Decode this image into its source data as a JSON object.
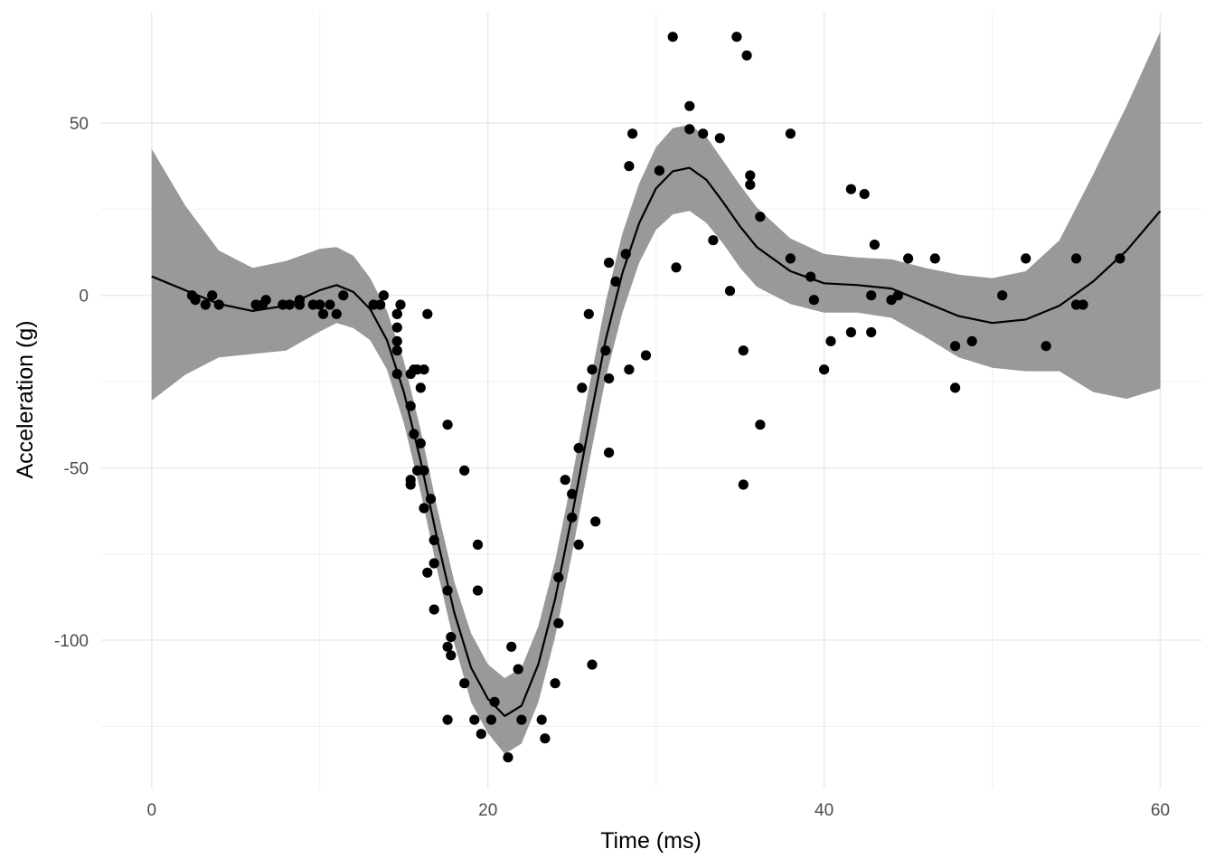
{
  "chart_data": {
    "type": "scatter",
    "title": "",
    "xlabel": "Time (ms)",
    "ylabel": "Acceleration (g)",
    "xlim": [
      -3.0,
      62.5
    ],
    "ylim": [
      -143,
      82
    ],
    "x_ticks": [
      0,
      20,
      40,
      60
    ],
    "x_minor_ticks": [
      10,
      30,
      50
    ],
    "y_ticks": [
      -100,
      -50,
      0,
      50
    ],
    "y_minor_ticks": [
      -125,
      -75,
      -25,
      25
    ],
    "grid": true,
    "legend": "none",
    "colors": {
      "points": "#000000",
      "smooth_line": "#000000",
      "confidence_band": "#999999",
      "grid": "#ebebeb"
    },
    "points": [
      {
        "x": 2.4,
        "y": 0.0
      },
      {
        "x": 2.6,
        "y": -1.3
      },
      {
        "x": 3.2,
        "y": -2.7
      },
      {
        "x": 3.6,
        "y": 0.0
      },
      {
        "x": 4.0,
        "y": -2.7
      },
      {
        "x": 6.2,
        "y": -2.7
      },
      {
        "x": 6.6,
        "y": -2.7
      },
      {
        "x": 6.8,
        "y": -1.3
      },
      {
        "x": 7.8,
        "y": -2.7
      },
      {
        "x": 8.2,
        "y": -2.7
      },
      {
        "x": 8.8,
        "y": -1.3
      },
      {
        "x": 8.8,
        "y": -2.7
      },
      {
        "x": 9.6,
        "y": -2.7
      },
      {
        "x": 10.0,
        "y": -2.7
      },
      {
        "x": 10.2,
        "y": -5.4
      },
      {
        "x": 10.6,
        "y": -2.7
      },
      {
        "x": 11.0,
        "y": -5.4
      },
      {
        "x": 11.4,
        "y": 0.0
      },
      {
        "x": 13.2,
        "y": -2.7
      },
      {
        "x": 13.6,
        "y": -2.7
      },
      {
        "x": 13.8,
        "y": 0.0
      },
      {
        "x": 14.6,
        "y": -13.3
      },
      {
        "x": 14.6,
        "y": -5.4
      },
      {
        "x": 14.6,
        "y": -5.4
      },
      {
        "x": 14.6,
        "y": -9.3
      },
      {
        "x": 14.6,
        "y": -16.0
      },
      {
        "x": 14.6,
        "y": -22.8
      },
      {
        "x": 14.8,
        "y": -2.7
      },
      {
        "x": 15.4,
        "y": -22.8
      },
      {
        "x": 15.4,
        "y": -32.1
      },
      {
        "x": 15.4,
        "y": -53.5
      },
      {
        "x": 15.4,
        "y": -54.9
      },
      {
        "x": 15.6,
        "y": -21.5
      },
      {
        "x": 15.6,
        "y": -40.2
      },
      {
        "x": 15.8,
        "y": -21.5
      },
      {
        "x": 15.8,
        "y": -50.8
      },
      {
        "x": 16.0,
        "y": -42.9
      },
      {
        "x": 16.0,
        "y": -26.8
      },
      {
        "x": 16.2,
        "y": -21.5
      },
      {
        "x": 16.2,
        "y": -50.8
      },
      {
        "x": 16.2,
        "y": -61.7
      },
      {
        "x": 16.4,
        "y": -5.4
      },
      {
        "x": 16.4,
        "y": -80.4
      },
      {
        "x": 16.6,
        "y": -59.0
      },
      {
        "x": 16.8,
        "y": -71.0
      },
      {
        "x": 16.8,
        "y": -91.1
      },
      {
        "x": 16.8,
        "y": -77.7
      },
      {
        "x": 17.6,
        "y": -37.5
      },
      {
        "x": 17.6,
        "y": -85.6
      },
      {
        "x": 17.6,
        "y": -123.1
      },
      {
        "x": 17.6,
        "y": -101.9
      },
      {
        "x": 17.8,
        "y": -99.1
      },
      {
        "x": 17.8,
        "y": -104.4
      },
      {
        "x": 18.6,
        "y": -112.5
      },
      {
        "x": 18.6,
        "y": -50.8
      },
      {
        "x": 19.2,
        "y": -123.1
      },
      {
        "x": 19.4,
        "y": -85.6
      },
      {
        "x": 19.4,
        "y": -72.3
      },
      {
        "x": 19.6,
        "y": -127.2
      },
      {
        "x": 20.2,
        "y": -123.1
      },
      {
        "x": 20.4,
        "y": -117.9
      },
      {
        "x": 21.2,
        "y": -134.0
      },
      {
        "x": 21.4,
        "y": -101.9
      },
      {
        "x": 21.8,
        "y": -108.4
      },
      {
        "x": 22.0,
        "y": -123.1
      },
      {
        "x": 23.2,
        "y": -123.1
      },
      {
        "x": 23.4,
        "y": -128.5
      },
      {
        "x": 24.0,
        "y": -112.5
      },
      {
        "x": 24.2,
        "y": -95.1
      },
      {
        "x": 24.2,
        "y": -81.8
      },
      {
        "x": 24.6,
        "y": -53.5
      },
      {
        "x": 25.0,
        "y": -64.4
      },
      {
        "x": 25.0,
        "y": -57.6
      },
      {
        "x": 25.4,
        "y": -72.3
      },
      {
        "x": 25.4,
        "y": -44.3
      },
      {
        "x": 25.6,
        "y": -26.8
      },
      {
        "x": 26.0,
        "y": -5.4
      },
      {
        "x": 26.2,
        "y": -107.1
      },
      {
        "x": 26.2,
        "y": -21.5
      },
      {
        "x": 26.4,
        "y": -65.6
      },
      {
        "x": 27.0,
        "y": -16.0
      },
      {
        "x": 27.2,
        "y": -45.6
      },
      {
        "x": 27.2,
        "y": -24.1
      },
      {
        "x": 27.2,
        "y": 9.5
      },
      {
        "x": 27.6,
        "y": 4.0
      },
      {
        "x": 28.2,
        "y": 12.0
      },
      {
        "x": 28.4,
        "y": -21.5
      },
      {
        "x": 28.4,
        "y": 37.5
      },
      {
        "x": 28.6,
        "y": 46.9
      },
      {
        "x": 29.4,
        "y": -17.4
      },
      {
        "x": 30.2,
        "y": 36.2
      },
      {
        "x": 31.0,
        "y": 75.0
      },
      {
        "x": 31.2,
        "y": 8.1
      },
      {
        "x": 32.0,
        "y": 48.2
      },
      {
        "x": 32.0,
        "y": 54.9
      },
      {
        "x": 32.8,
        "y": 46.9
      },
      {
        "x": 33.4,
        "y": 16.0
      },
      {
        "x": 33.8,
        "y": 45.6
      },
      {
        "x": 34.4,
        "y": 1.3
      },
      {
        "x": 34.8,
        "y": 75.0
      },
      {
        "x": 35.2,
        "y": -16.0
      },
      {
        "x": 35.2,
        "y": -54.9
      },
      {
        "x": 35.4,
        "y": 69.6
      },
      {
        "x": 35.6,
        "y": 34.8
      },
      {
        "x": 35.6,
        "y": 32.1
      },
      {
        "x": 36.2,
        "y": 22.8
      },
      {
        "x": 36.2,
        "y": -37.5
      },
      {
        "x": 38.0,
        "y": 46.9
      },
      {
        "x": 38.0,
        "y": 10.7
      },
      {
        "x": 39.2,
        "y": 5.4
      },
      {
        "x": 39.4,
        "y": -1.3
      },
      {
        "x": 40.0,
        "y": -21.5
      },
      {
        "x": 40.4,
        "y": -13.3
      },
      {
        "x": 41.6,
        "y": 30.8
      },
      {
        "x": 41.6,
        "y": -10.7
      },
      {
        "x": 42.4,
        "y": 29.4
      },
      {
        "x": 42.8,
        "y": 0.0
      },
      {
        "x": 42.8,
        "y": -10.7
      },
      {
        "x": 43.0,
        "y": 14.7
      },
      {
        "x": 44.0,
        "y": -1.3
      },
      {
        "x": 44.4,
        "y": 0.0
      },
      {
        "x": 45.0,
        "y": 10.7
      },
      {
        "x": 46.6,
        "y": 10.7
      },
      {
        "x": 47.8,
        "y": -14.7
      },
      {
        "x": 47.8,
        "y": -26.8
      },
      {
        "x": 48.8,
        "y": -13.3
      },
      {
        "x": 50.6,
        "y": 0.0
      },
      {
        "x": 52.0,
        "y": 10.7
      },
      {
        "x": 53.2,
        "y": -14.7
      },
      {
        "x": 55.0,
        "y": 10.7
      },
      {
        "x": 55.0,
        "y": -2.7
      },
      {
        "x": 55.4,
        "y": -2.7
      },
      {
        "x": 57.6,
        "y": 10.7
      }
    ],
    "smooth": {
      "x": [
        0,
        2,
        4,
        6,
        8,
        10,
        11,
        12,
        13,
        14,
        15,
        16,
        17,
        18,
        19,
        20,
        21,
        22,
        23,
        24,
        25,
        26,
        27,
        28,
        29,
        30,
        31,
        32,
        33,
        34,
        35,
        36,
        38,
        40,
        42,
        44,
        46,
        48,
        50,
        52,
        54,
        56,
        58,
        60
      ],
      "y": [
        5.5,
        1.5,
        -2.5,
        -4.5,
        -3.0,
        1.5,
        3.0,
        1.0,
        -4.0,
        -13.0,
        -28.0,
        -48.0,
        -71.0,
        -92.0,
        -108.0,
        -117.0,
        -122.0,
        -119.0,
        -107.0,
        -88.0,
        -64.0,
        -38.0,
        -13.0,
        6.5,
        21.0,
        31.0,
        36.0,
        37.0,
        33.5,
        27.0,
        20.0,
        14.0,
        7.0,
        3.5,
        3.0,
        2.0,
        -2.0,
        -6.0,
        -8.0,
        -7.0,
        -3.0,
        4.0,
        13.0,
        24.5
      ]
    },
    "confidence_band": {
      "x": [
        0,
        2,
        4,
        6,
        8,
        10,
        11,
        12,
        13,
        14,
        15,
        16,
        17,
        18,
        19,
        20,
        21,
        22,
        23,
        24,
        25,
        26,
        27,
        28,
        29,
        30,
        31,
        32,
        33,
        34,
        35,
        36,
        38,
        40,
        42,
        44,
        46,
        48,
        50,
        52,
        54,
        56,
        58,
        60
      ],
      "upper": [
        42.5,
        26.0,
        13.0,
        8.0,
        10.0,
        13.5,
        14.0,
        11.5,
        5.0,
        -4.5,
        -19.0,
        -39.0,
        -62.0,
        -83.0,
        -98.0,
        -107.0,
        -111.0,
        -108.0,
        -96.0,
        -77.0,
        -53.0,
        -27.0,
        -2.0,
        18.0,
        32.5,
        43.0,
        48.5,
        49.5,
        46.0,
        39.0,
        32.0,
        25.5,
        16.5,
        12.0,
        11.0,
        10.5,
        8.0,
        6.0,
        5.0,
        7.0,
        16.0,
        35.0,
        55.0,
        76.5
      ],
      "lower": [
        -30.5,
        -23.0,
        -18.0,
        -17.0,
        -16.0,
        -10.5,
        -8.0,
        -9.5,
        -13.0,
        -21.5,
        -37.0,
        -57.0,
        -80.0,
        -101.0,
        -118.0,
        -127.0,
        -133.0,
        -130.0,
        -118.0,
        -99.0,
        -75.0,
        -49.0,
        -24.0,
        -5.0,
        9.5,
        19.0,
        23.5,
        24.5,
        21.0,
        15.0,
        8.0,
        2.5,
        -2.5,
        -5.0,
        -5.0,
        -6.5,
        -12.0,
        -18.0,
        -21.0,
        -22.0,
        -22.0,
        -28.0,
        -30.0,
        -27.0
      ]
    }
  }
}
